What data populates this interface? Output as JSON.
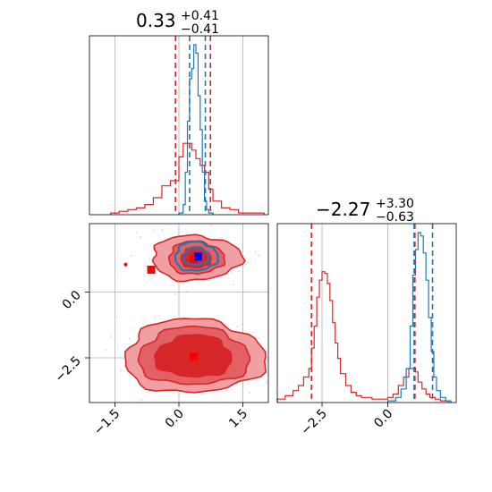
{
  "colors": {
    "red": "#d62728",
    "blue": "#1f77b4",
    "red_fill_light": "#f0a0a3",
    "red_fill_mid": "#e36064",
    "red_fill_dark": "#d62728",
    "marker_red": "#ff0000",
    "marker_blue": "#0000ff",
    "grid": "#b0b0b0"
  },
  "chart_data": [
    {
      "type": "histogram",
      "panel": "param1-marginal",
      "title": {
        "value": "0.33",
        "upper": "+0.41",
        "lower": "−0.41"
      },
      "xlim": [
        -2.1,
        2.1
      ],
      "grid": true,
      "quantile_lines": {
        "red": [
          -0.08,
          0.74
        ],
        "blue": [
          0.25,
          0.62
        ]
      },
      "series": [
        {
          "color": "red",
          "bin_edges": [
            -1.6,
            -1.4,
            -1.2,
            -1.0,
            -0.8,
            -0.6,
            -0.4,
            -0.2,
            0.0,
            0.1,
            0.2,
            0.3,
            0.4,
            0.5,
            0.6,
            0.7,
            0.8,
            1.0,
            1.2,
            1.4,
            1.6,
            2.0
          ],
          "counts": [
            0.01,
            0.02,
            0.03,
            0.04,
            0.06,
            0.1,
            0.17,
            0.2,
            0.34,
            0.42,
            0.42,
            0.38,
            0.33,
            0.29,
            0.25,
            0.15,
            0.08,
            0.04,
            0.03,
            0.01,
            0.01
          ]
        },
        {
          "color": "blue",
          "bin_edges": [
            0.0,
            0.1,
            0.15,
            0.2,
            0.25,
            0.3,
            0.35,
            0.4,
            0.45,
            0.5,
            0.55,
            0.6,
            0.65,
            0.7,
            0.8
          ],
          "counts": [
            0.01,
            0.06,
            0.25,
            0.55,
            0.8,
            0.86,
            1.0,
            0.95,
            0.7,
            0.5,
            0.25,
            0.08,
            0.03,
            0.01
          ]
        }
      ]
    },
    {
      "type": "contour",
      "panel": "joint",
      "xlim": [
        -2.1,
        2.1
      ],
      "ylim": [
        -4.2,
        2.6
      ],
      "xticks": [
        "−1.5",
        "0.0",
        "1.5"
      ],
      "xtick_values": [
        -1.5,
        0.0,
        1.5
      ],
      "yticks": [
        "0.0",
        "−2.5"
      ],
      "ytick_values": [
        0.0,
        -2.5
      ],
      "grid": true,
      "red_modes": [
        {
          "center": [
            0.4,
            1.3
          ],
          "radii": [
            [
              1.05,
              0.85
            ],
            [
              0.65,
              0.62
            ],
            [
              0.35,
              0.4
            ]
          ]
        },
        {
          "center": [
            0.35,
            -2.45
          ],
          "radii": [
            [
              1.65,
              1.4
            ],
            [
              1.3,
              1.1
            ],
            [
              0.9,
              0.8
            ]
          ]
        }
      ],
      "blue_mode": {
        "center": [
          0.4,
          1.35
        ],
        "radii": [
          [
            0.5,
            0.55
          ],
          [
            0.3,
            0.32
          ]
        ]
      },
      "markers": [
        {
          "color": "red",
          "shape": "square",
          "x": -0.65,
          "y": 0.85
        },
        {
          "color": "red",
          "shape": "square",
          "x": 0.35,
          "y": 1.25
        },
        {
          "color": "red",
          "shape": "square",
          "x": 0.35,
          "y": -2.45
        },
        {
          "color": "red",
          "shape": "dot",
          "x": -1.25,
          "y": 1.05
        },
        {
          "color": "blue",
          "shape": "square",
          "x": 0.45,
          "y": 1.35
        }
      ]
    },
    {
      "type": "histogram",
      "panel": "param2-marginal",
      "title": {
        "value": "−2.27",
        "upper": "+3.30",
        "lower": "−0.63"
      },
      "xlim": [
        -4.2,
        2.6
      ],
      "xticks": [
        "−2.5",
        "0.0"
      ],
      "xtick_values": [
        -2.5,
        0.0
      ],
      "grid": true,
      "quantile_lines": {
        "red": [
          -2.9,
          1.03
        ],
        "blue": [
          1.0,
          1.7
        ]
      },
      "series": [
        {
          "color": "red",
          "bin_edges": [
            -4.2,
            -3.9,
            -3.6,
            -3.4,
            -3.2,
            -3.0,
            -2.9,
            -2.8,
            -2.7,
            -2.6,
            -2.5,
            -2.4,
            -2.3,
            -2.2,
            -2.1,
            -2.0,
            -1.9,
            -1.8,
            -1.6,
            -1.4,
            -1.2,
            -1.0,
            -0.8,
            -0.6,
            -0.4,
            -0.2,
            0.0,
            0.2,
            0.4,
            0.6,
            0.8,
            0.95,
            1.05,
            1.15,
            1.3,
            1.45,
            1.6,
            1.8,
            2.0,
            2.3
          ],
          "counts": [
            0.02,
            0.04,
            0.07,
            0.1,
            0.15,
            0.2,
            0.32,
            0.45,
            0.62,
            0.72,
            0.77,
            0.76,
            0.7,
            0.6,
            0.47,
            0.35,
            0.26,
            0.17,
            0.1,
            0.06,
            0.04,
            0.03,
            0.03,
            0.02,
            0.02,
            0.02,
            0.03,
            0.05,
            0.1,
            0.15,
            0.2,
            0.2,
            0.18,
            0.12,
            0.08,
            0.05,
            0.03,
            0.02,
            0.01
          ]
        },
        {
          "color": "blue",
          "bin_edges": [
            0.0,
            0.3,
            0.5,
            0.7,
            0.85,
            0.95,
            1.05,
            1.15,
            1.25,
            1.35,
            1.45,
            1.55,
            1.65,
            1.75,
            1.85,
            2.0,
            2.2,
            2.4
          ],
          "counts": [
            0.01,
            0.03,
            0.08,
            0.2,
            0.45,
            0.75,
            0.9,
            1.0,
            0.98,
            0.88,
            0.72,
            0.5,
            0.3,
            0.15,
            0.07,
            0.03,
            0.01
          ]
        }
      ]
    }
  ]
}
